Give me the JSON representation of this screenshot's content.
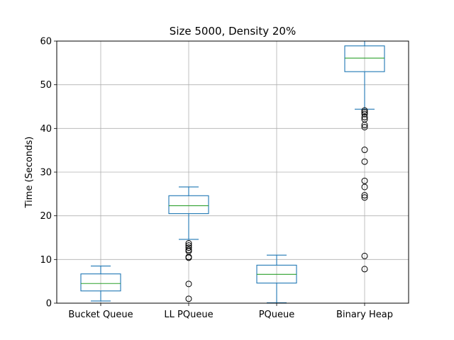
{
  "chart_data": {
    "type": "box",
    "title": "Size 5000, Density 20%",
    "xlabel": "",
    "ylabel": "Time (Seconds)",
    "ylim": [
      0,
      60
    ],
    "yticks": [
      0,
      10,
      20,
      30,
      40,
      50,
      60
    ],
    "grid": true,
    "categories": [
      "Bucket Queue",
      "LL PQueue",
      "PQueue",
      "Binary Heap"
    ],
    "boxes": [
      {
        "q1": 2.8,
        "median": 4.5,
        "q3": 6.7,
        "whisker_low": 0.5,
        "whisker_high": 8.5,
        "outliers": []
      },
      {
        "q1": 20.5,
        "median": 22.3,
        "q3": 24.6,
        "whisker_low": 14.6,
        "whisker_high": 26.6,
        "outliers": [
          13.7,
          13.2,
          12.7,
          12.2,
          11.9,
          10.6,
          10.4,
          4.4,
          1.0
        ]
      },
      {
        "q1": 4.6,
        "median": 6.6,
        "q3": 8.7,
        "whisker_low": 0.1,
        "whisker_high": 11.0,
        "outliers": []
      },
      {
        "q1": 53.0,
        "median": 56.1,
        "q3": 58.9,
        "whisker_low": 44.4,
        "whisker_high": 60.0,
        "outliers": [
          44.1,
          43.7,
          43.3,
          42.6,
          42.1,
          40.8,
          40.3,
          35.1,
          32.4,
          28.0,
          26.6,
          24.7,
          24.2,
          10.8,
          7.8
        ]
      }
    ],
    "colors": {
      "box": "#1f77b4",
      "median": "#2ca02c",
      "grid": "#b0b0b0",
      "outlier": "#000000"
    }
  }
}
